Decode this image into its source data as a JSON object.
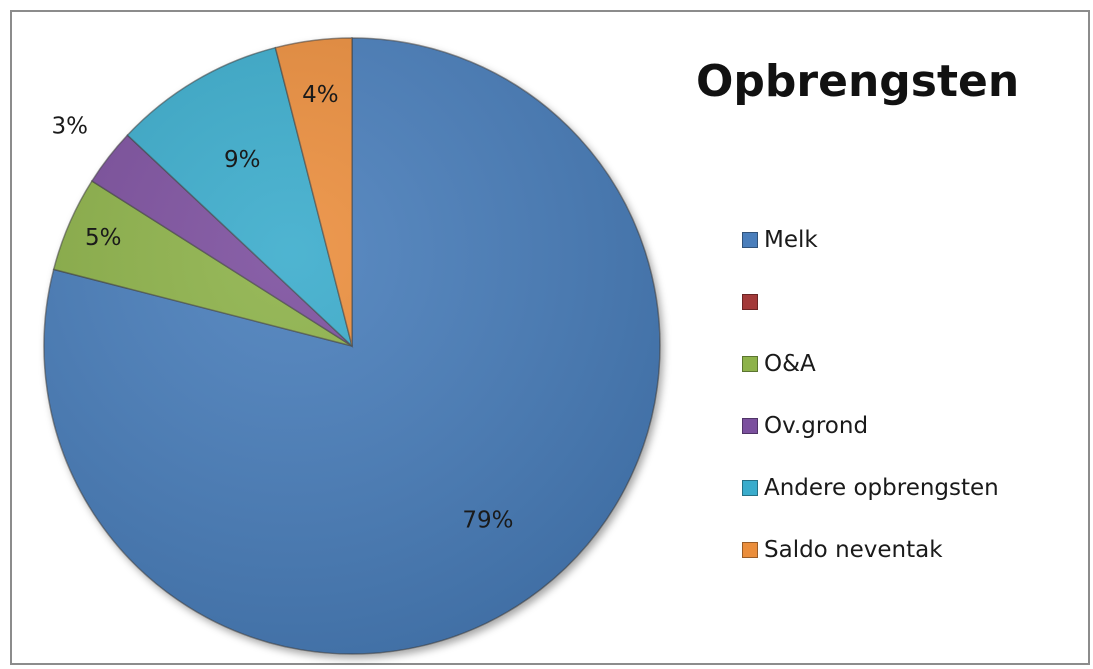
{
  "chart_data": {
    "type": "pie",
    "title": "Opbrengsten",
    "legend_position": "right",
    "slices": [
      {
        "name": "Melk",
        "value": 79,
        "label": "79%",
        "color": "#4a7ebb"
      },
      {
        "name": "",
        "value": 0,
        "label": "",
        "color": "#a33a3a"
      },
      {
        "name": "O&A",
        "value": 5,
        "label": "5%",
        "color": "#8db24a"
      },
      {
        "name": "Ov.grond",
        "value": 3,
        "label": "3%",
        "color": "#7b509e"
      },
      {
        "name": "Andere opbrengsten",
        "value": 9,
        "label": "9%",
        "color": "#3aaccc"
      },
      {
        "name": "Saldo neventak",
        "value": 4,
        "label": "4%",
        "color": "#eb8e3c"
      }
    ]
  }
}
